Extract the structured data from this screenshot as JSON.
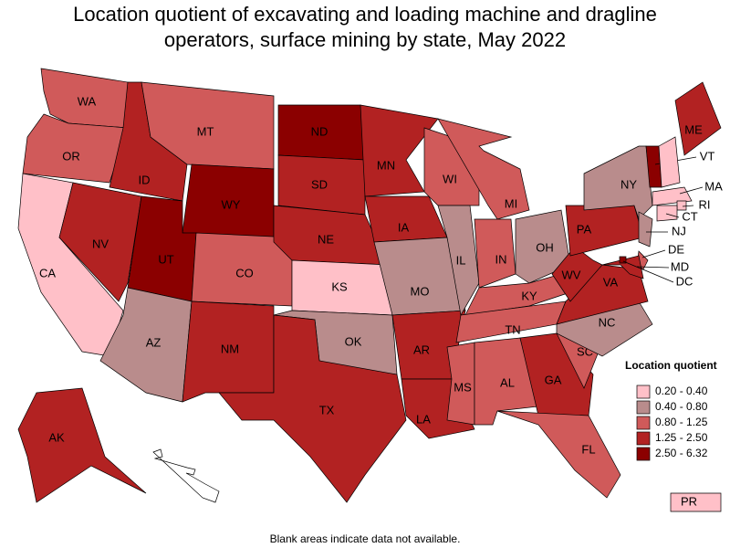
{
  "chart_data": {
    "type": "choropleth",
    "title": "Location quotient of excavating and loading machine and dragline operators, surface mining by state, May 2022",
    "legend_title": "Location quotient",
    "legend": [
      {
        "name": "0.20 - 0.40",
        "color": "#ffc0c8"
      },
      {
        "name": "0.40 - 0.80",
        "color": "#b98c8c"
      },
      {
        "name": "0.80 - 1.25",
        "color": "#d05a5a"
      },
      {
        "name": "1.25 - 2.50",
        "color": "#b22222"
      },
      {
        "name": "2.50 - 6.32",
        "color": "#8b0000"
      }
    ],
    "states": [
      {
        "label": "WA",
        "color": "#d05a5a"
      },
      {
        "label": "OR",
        "color": "#d05a5a"
      },
      {
        "label": "CA",
        "color": "#ffc0c8"
      },
      {
        "label": "NV",
        "color": "#b22222"
      },
      {
        "label": "ID",
        "color": "#b22222"
      },
      {
        "label": "MT",
        "color": "#d05a5a"
      },
      {
        "label": "WY",
        "color": "#8b0000"
      },
      {
        "label": "UT",
        "color": "#8b0000"
      },
      {
        "label": "CO",
        "color": "#d05a5a"
      },
      {
        "label": "AZ",
        "color": "#b98c8c"
      },
      {
        "label": "NM",
        "color": "#b22222"
      },
      {
        "label": "ND",
        "color": "#8b0000"
      },
      {
        "label": "SD",
        "color": "#b22222"
      },
      {
        "label": "NE",
        "color": "#b22222"
      },
      {
        "label": "KS",
        "color": "#ffc0c8"
      },
      {
        "label": "OK",
        "color": "#b98c8c"
      },
      {
        "label": "TX",
        "color": "#b22222"
      },
      {
        "label": "MN",
        "color": "#b22222"
      },
      {
        "label": "IA",
        "color": "#b22222"
      },
      {
        "label": "MO",
        "color": "#b98c8c"
      },
      {
        "label": "AR",
        "color": "#b22222"
      },
      {
        "label": "LA",
        "color": "#b22222"
      },
      {
        "label": "WI",
        "color": "#d05a5a"
      },
      {
        "label": "IL",
        "color": "#b98c8c"
      },
      {
        "label": "MI",
        "color": "#d05a5a"
      },
      {
        "label": "IN",
        "color": "#d05a5a"
      },
      {
        "label": "OH",
        "color": "#b98c8c"
      },
      {
        "label": "KY",
        "color": "#d05a5a"
      },
      {
        "label": "TN",
        "color": "#d05a5a"
      },
      {
        "label": "MS",
        "color": "#d05a5a"
      },
      {
        "label": "AL",
        "color": "#d05a5a"
      },
      {
        "label": "GA",
        "color": "#b22222"
      },
      {
        "label": "FL",
        "color": "#d05a5a"
      },
      {
        "label": "SC",
        "color": "#d05a5a"
      },
      {
        "label": "NC",
        "color": "#b98c8c"
      },
      {
        "label": "VA",
        "color": "#b22222"
      },
      {
        "label": "WV",
        "color": "#b22222"
      },
      {
        "label": "PA",
        "color": "#b22222"
      },
      {
        "label": "NY",
        "color": "#b98c8c"
      },
      {
        "label": "ME",
        "color": "#b22222"
      },
      {
        "label": "VT",
        "color": "#8b0000"
      },
      {
        "label": null,
        "color": "#ffc0c8"
      },
      {
        "label": "MA",
        "color": "#ffc0c8"
      },
      {
        "label": "RI",
        "color": "#ffc0c8"
      },
      {
        "label": "CT",
        "color": "#ffc0c8"
      },
      {
        "label": "NJ",
        "color": "#b98c8c"
      },
      {
        "label": "DE",
        "color": "#d05a5a"
      },
      {
        "label": "MD",
        "color": "#b22222"
      },
      {
        "label": "DC",
        "color": "#8b0000"
      },
      {
        "label": "AK",
        "color": "#b22222"
      },
      {
        "label": null,
        "color": "#ffffff"
      },
      {
        "label": "PR",
        "color": "#ffc0c8"
      }
    ],
    "note": "Blank areas indicate data not available."
  }
}
